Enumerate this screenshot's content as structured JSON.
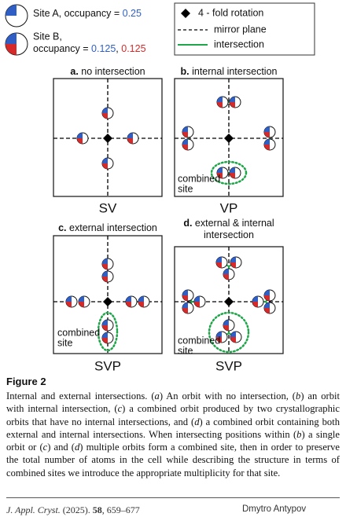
{
  "legend": {
    "site_a": {
      "label": "Site A, occupancy = ",
      "occupancy": "0.25"
    },
    "site_b": {
      "label_line1": "Site B,",
      "label_line2": "occupancy = ",
      "occupancy_1": "0.125",
      "separator": ", ",
      "occupancy_2": "0.125"
    },
    "symbols": [
      "4 - fold rotation",
      "mirror plane",
      "intersection"
    ]
  },
  "panels": [
    {
      "letter": "a.",
      "label": [
        "no intersection"
      ],
      "symmetry": "SV"
    },
    {
      "letter": "b.",
      "label": [
        "internal intersection"
      ],
      "symmetry": "VP",
      "note": [
        "combined",
        "site"
      ]
    },
    {
      "letter": "c.",
      "label": [
        "external intersection"
      ],
      "symmetry": "SVP",
      "note": [
        "combined",
        "site"
      ]
    },
    {
      "letter": "d.",
      "label": [
        "external & internal",
        "intersection"
      ],
      "symmetry": "SVP",
      "note": [
        "combined",
        "site"
      ]
    }
  ],
  "figure_title": "Figure 2",
  "caption": [
    "Internal and external intersections. (",
    "a",
    ") An orbit with no intersection, (",
    "b",
    ") an orbit with internal intersection, (",
    "c",
    ") a combined orbit produced by two crystallographic orbits that have no internal intersections, and (",
    "d",
    ") a combined orbit containing both external and internal intersections. When intersecting positions within (",
    "b",
    ") a single orbit or (",
    "c",
    ") and (",
    "d",
    ") multiple orbits form a combined site, then in order to preserve the total number of atoms in the cell while describing the structure in terms of combined sites we introduce the appropriate multiplicity for that site."
  ],
  "footer": {
    "journal": "J. Appl. Cryst.",
    "year": "(2025).",
    "volume": "58",
    "pages": ", 659–677",
    "author": "Dmytro Antypov"
  }
}
